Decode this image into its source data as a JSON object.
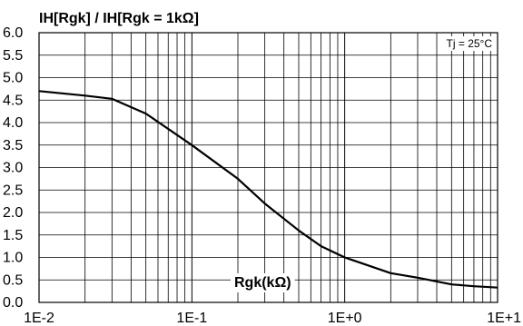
{
  "chart_data": {
    "type": "line",
    "title": "IH[Rgk] / IH[Rgk = 1kΩ]",
    "xlabel": "Rgk(kΩ)",
    "ylabel": "IH[Rgk] / IH[Rgk = 1kΩ]",
    "xscale": "log",
    "xlim": [
      0.01,
      10
    ],
    "ylim": [
      0,
      6
    ],
    "grid": true,
    "x_tick_labels": [
      "1E-2",
      "1E-1",
      "1E+0",
      "1E+1"
    ],
    "y_tick_labels": [
      "0.0",
      "0.5",
      "1.0",
      "1.5",
      "2.0",
      "2.5",
      "3.0",
      "3.5",
      "4.0",
      "4.5",
      "5.0",
      "5.5",
      "6.0"
    ],
    "annotation": "Tj = 25°C",
    "series": [
      {
        "color": "#000000",
        "x": [
          0.01,
          0.02,
          0.03,
          0.05,
          0.1,
          0.2,
          0.3,
          0.5,
          0.7,
          1,
          2,
          3,
          5,
          7,
          10
        ],
        "y": [
          4.7,
          4.6,
          4.53,
          4.2,
          3.5,
          2.75,
          2.2,
          1.6,
          1.25,
          1.0,
          0.65,
          0.55,
          0.4,
          0.36,
          0.33
        ]
      }
    ]
  }
}
